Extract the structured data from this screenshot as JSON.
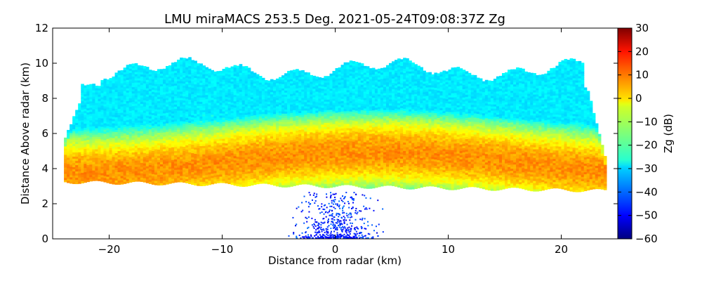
{
  "chart_data": {
    "type": "heatmap",
    "title": "LMU miraMACS 253.5 Deg. 2021-05-24T09:08:37Z  Zg",
    "xlabel": "Distance from radar (km)",
    "ylabel": "Distance Above radar  (km)",
    "xlim": [
      -25,
      25
    ],
    "ylim": [
      0,
      12
    ],
    "xticks": [
      -20,
      -10,
      0,
      10,
      20
    ],
    "xtick_labels": [
      "−20",
      "−10",
      "0",
      "10",
      "20"
    ],
    "yticks": [
      0,
      2,
      4,
      6,
      8,
      10,
      12
    ],
    "ytick_labels": [
      "0",
      "2",
      "4",
      "6",
      "8",
      "10",
      "12"
    ],
    "colorbar": {
      "label": "Zg (dB)",
      "range": [
        -60,
        30
      ],
      "ticks": [
        30,
        20,
        10,
        0,
        -10,
        -20,
        -30,
        -40,
        -50,
        -60
      ],
      "tick_labels": [
        "30",
        "20",
        "10",
        "0",
        "−10",
        "−20",
        "−30",
        "−40",
        "−50",
        "−60"
      ],
      "colormap": "jet"
    },
    "grid": false,
    "features": [
      {
        "name": "cloud base",
        "x_range": [
          -24,
          24
        ],
        "base_km": [
          3.2,
          2.8
        ],
        "top_km": [
          8.5,
          10.6
        ],
        "core_km": [
          3.5,
          5.5
        ],
        "core_dB": 5
      },
      {
        "name": "anvil top",
        "x_range": [
          -20,
          22
        ],
        "height_km": [
          9.0,
          10.8
        ],
        "dB": -20
      },
      {
        "name": "near-ground clutter",
        "x_range": [
          -3,
          3
        ],
        "height_km": [
          0,
          2.5
        ],
        "dB": -45
      }
    ]
  }
}
